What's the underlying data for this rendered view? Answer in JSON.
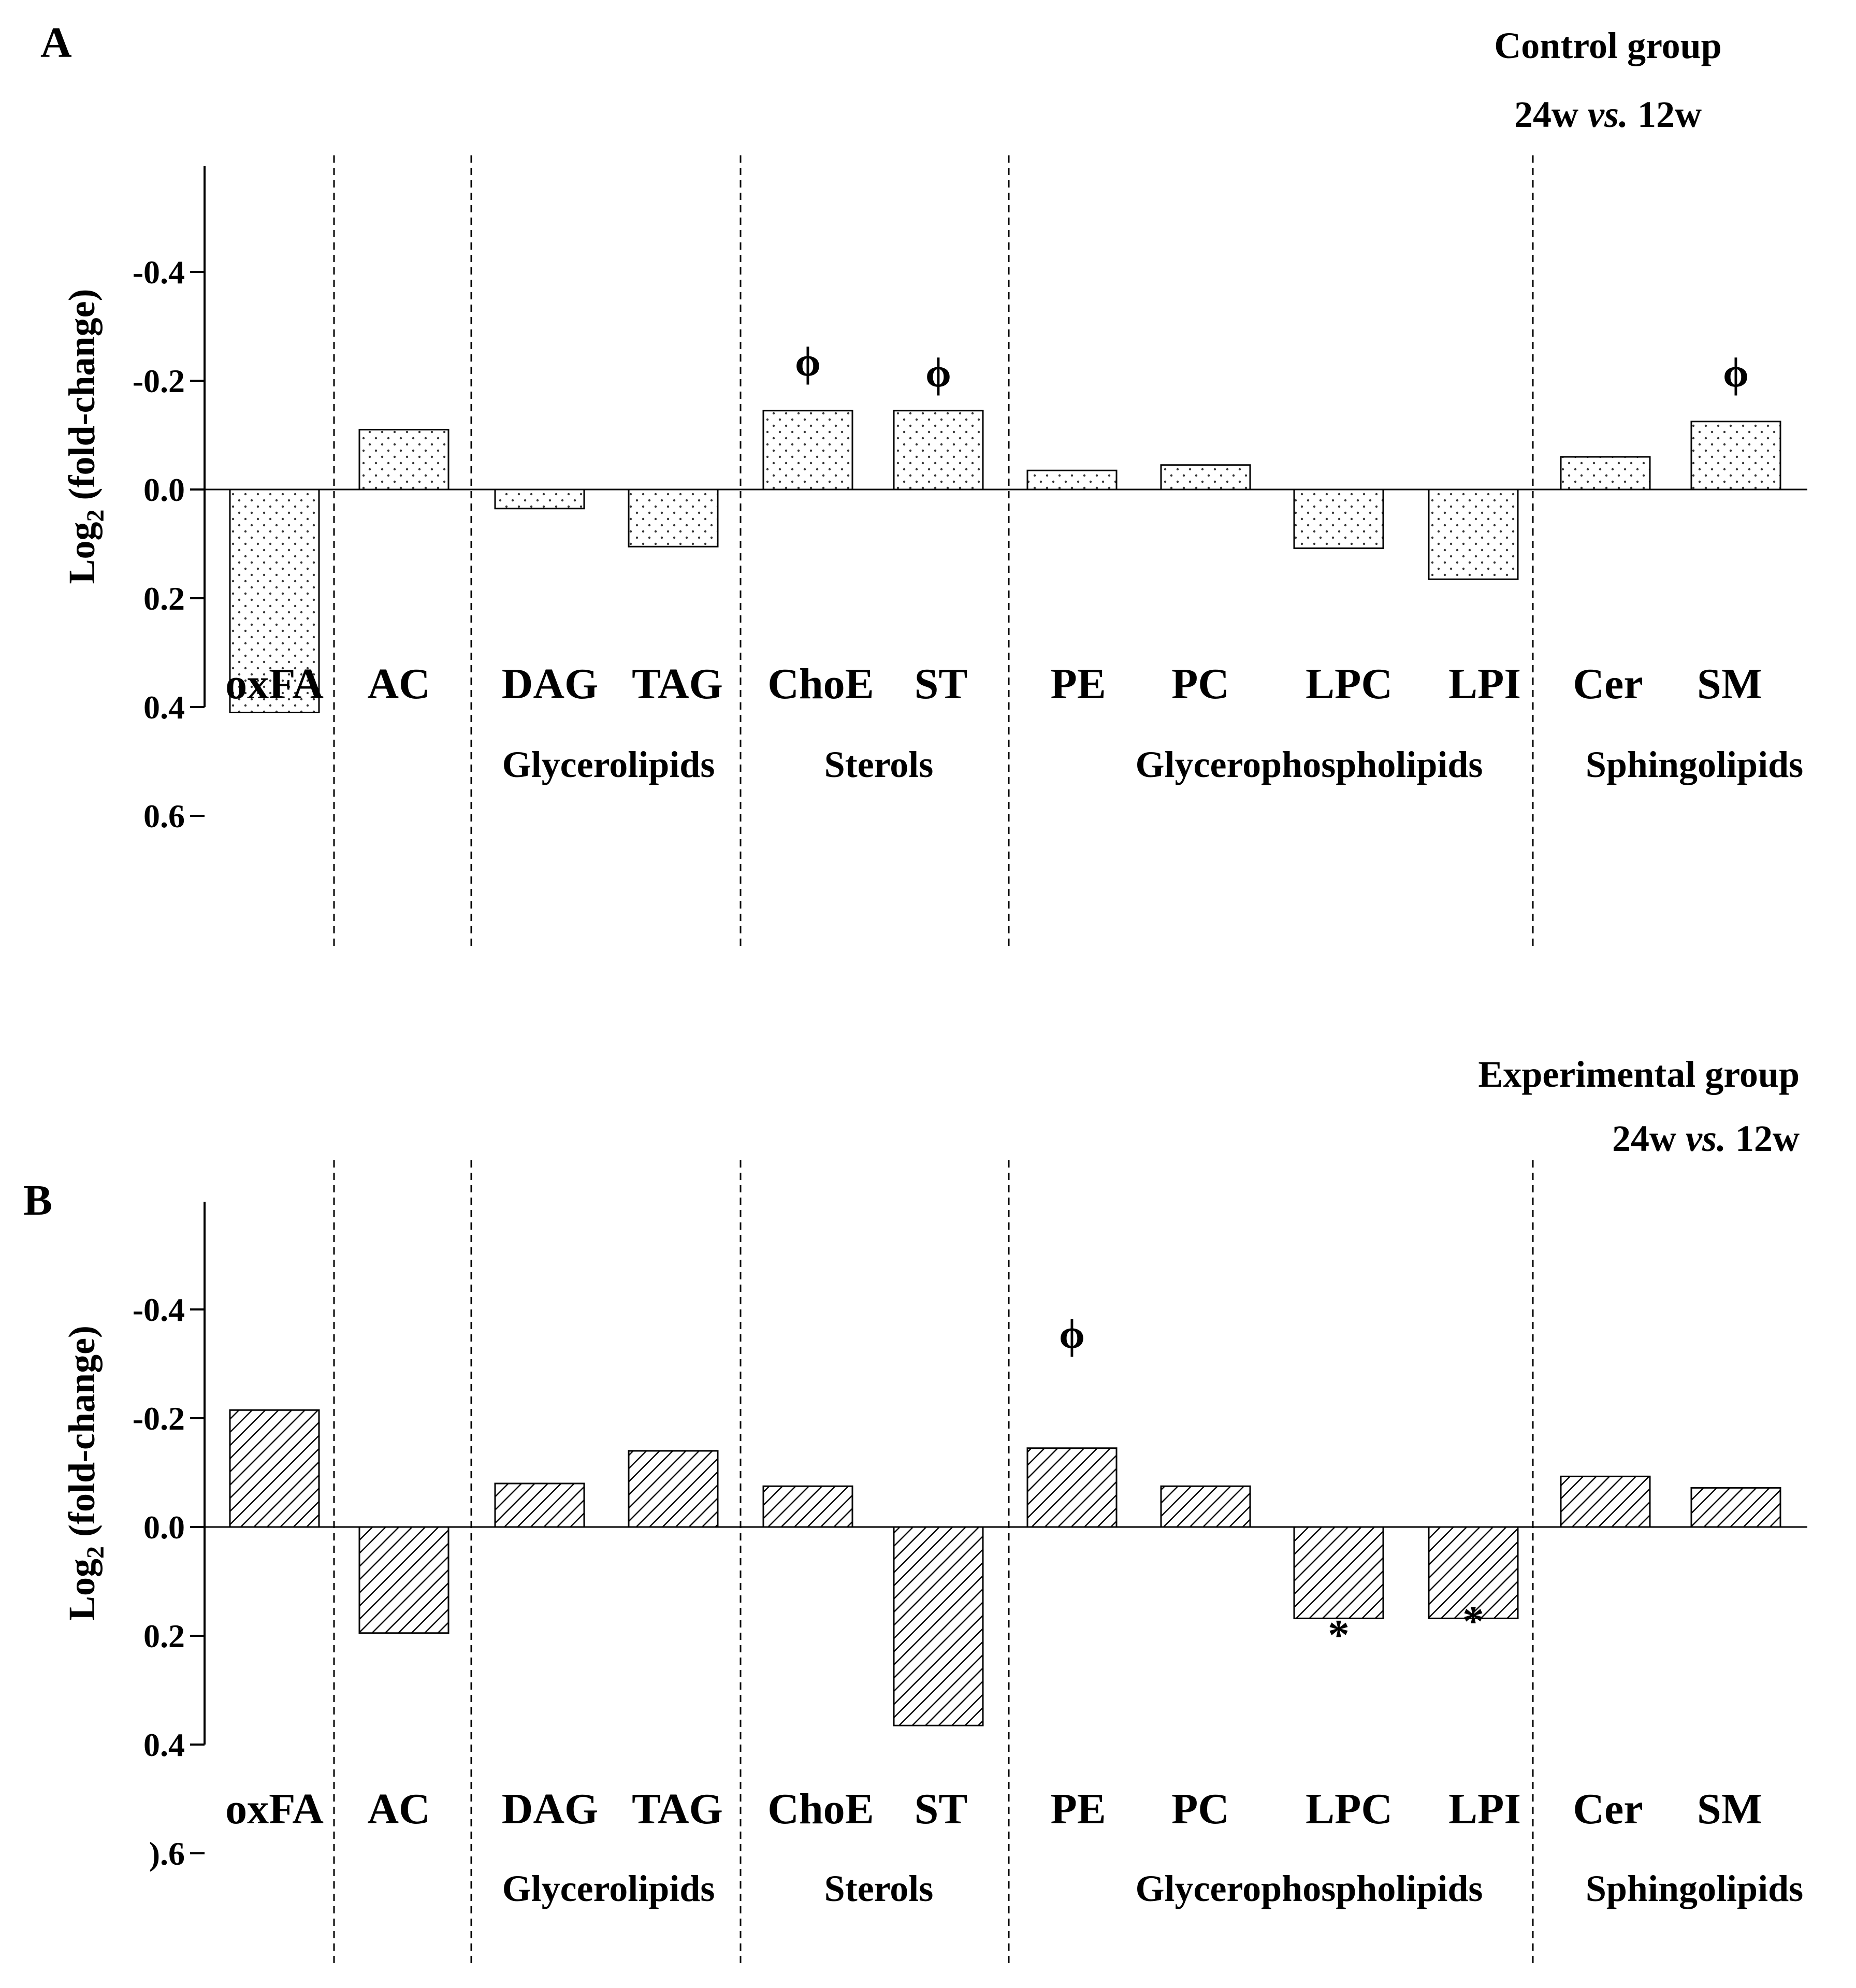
{
  "chart_data": [
    {
      "type": "bar",
      "panel_letter": "A",
      "title": "Control group",
      "subtitle_parts": [
        "24w ",
        "vs.",
        " 12w"
      ],
      "ylabel_main": "Log",
      "ylabel_sub": "2",
      "ylabel_rest": " (fold-change)",
      "ylim": [
        -0.4,
        0.6
      ],
      "yticks": [
        "0.6",
        "0.4",
        "0.2",
        "0.0",
        "-0.2",
        "-0.4"
      ],
      "categories": [
        "oxFA",
        "AC",
        "DAG",
        "TAG",
        "ChoE",
        "ST",
        "PE",
        "PC",
        "LPC",
        "LPI",
        "Cer",
        "SM"
      ],
      "values": [
        0.41,
        -0.11,
        0.035,
        0.105,
        -0.145,
        -0.145,
        -0.035,
        -0.045,
        0.108,
        0.165,
        -0.06,
        -0.125
      ],
      "markers": [
        {
          "category": "ChoE",
          "symbol": "ϕ",
          "y": -0.23
        },
        {
          "category": "ST",
          "symbol": "ϕ",
          "y": -0.21
        },
        {
          "category": "SM",
          "symbol": "ϕ",
          "y": -0.21
        }
      ],
      "groups": [
        {
          "label": "Glycerolipids",
          "categories": [
            "DAG",
            "TAG"
          ]
        },
        {
          "label": "Sterols",
          "categories": [
            "ChoE",
            "ST"
          ]
        },
        {
          "label": "Glycerophospholipids",
          "categories": [
            "PE",
            "PC",
            "LPC",
            "LPI"
          ]
        },
        {
          "label": "Sphingolipids",
          "categories": [
            "Cer",
            "SM"
          ]
        }
      ],
      "pattern": "dots",
      "grid": false
    },
    {
      "type": "bar",
      "panel_letter": "B",
      "title": "Experimental group",
      "subtitle_parts": [
        "24w ",
        "vs.",
        " 12w"
      ],
      "ylabel_main": "Log",
      "ylabel_sub": "2",
      "ylabel_rest": " (fold-change)",
      "ylim": [
        -0.4,
        0.6
      ],
      "yticks": [
        ").6",
        "0.4",
        "0.2",
        "0.0",
        "-0.2",
        "-0.4"
      ],
      "categories": [
        "oxFA",
        "AC",
        "DAG",
        "TAG",
        "ChoE",
        "ST",
        "PE",
        "PC",
        "LPC",
        "LPI",
        "Cer",
        "SM"
      ],
      "values": [
        -0.215,
        0.195,
        -0.08,
        -0.14,
        -0.075,
        0.365,
        -0.145,
        -0.075,
        0.168,
        0.168,
        -0.093,
        -0.072
      ],
      "markers": [
        {
          "category": "LPC",
          "symbol": "*",
          "y": 0.215
        },
        {
          "category": "LPI",
          "symbol": "*",
          "y": 0.19
        },
        {
          "category": "PE",
          "symbol": "ϕ",
          "y": -0.35
        }
      ],
      "groups": [
        {
          "label": "Glycerolipids",
          "categories": [
            "DAG",
            "TAG"
          ]
        },
        {
          "label": "Sterols",
          "categories": [
            "ChoE",
            "ST"
          ]
        },
        {
          "label": "Glycerophospholipids",
          "categories": [
            "PE",
            "PC",
            "LPC",
            "LPI"
          ]
        },
        {
          "label": "Sphingolipids",
          "categories": [
            "Cer",
            "SM"
          ]
        }
      ],
      "pattern": "hatch",
      "grid": false
    }
  ]
}
